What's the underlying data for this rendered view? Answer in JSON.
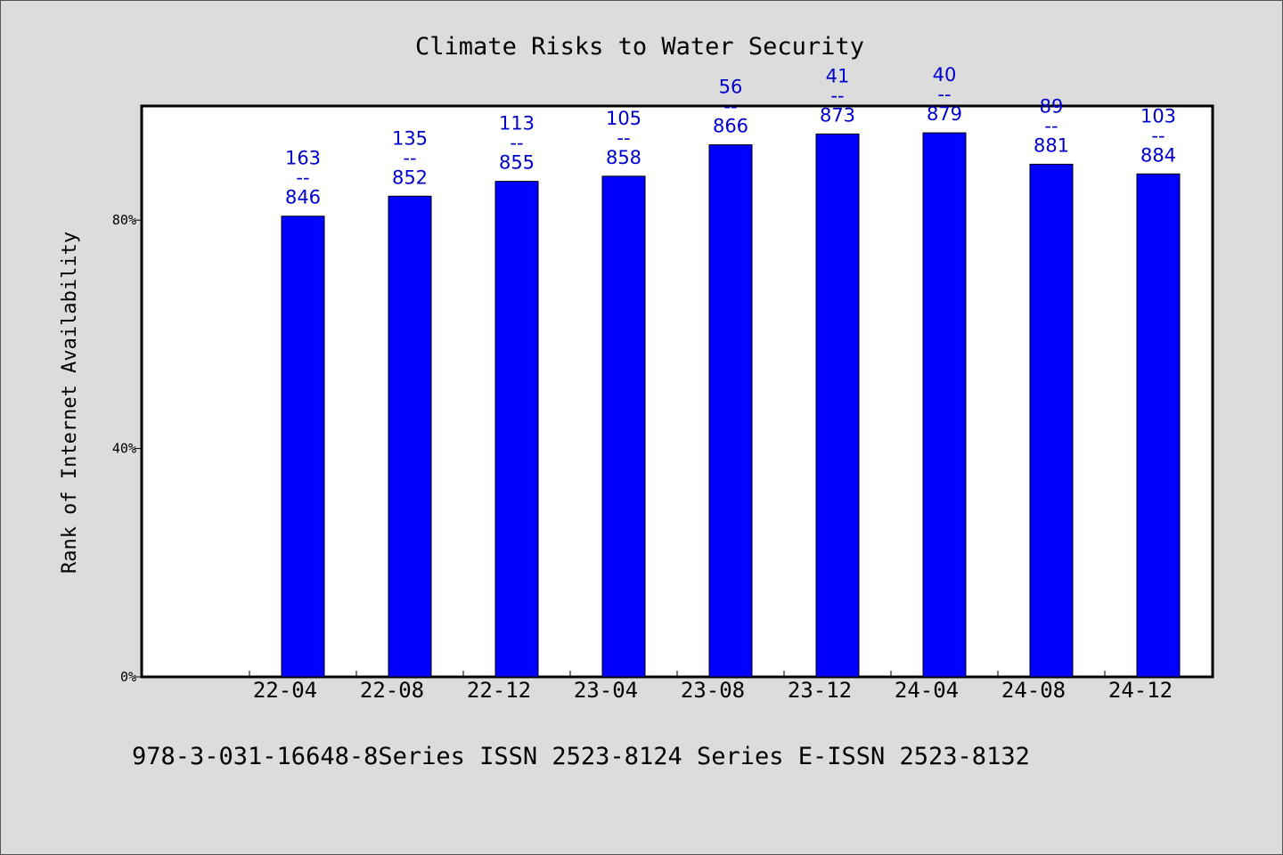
{
  "chart_data": {
    "type": "bar",
    "title": "Climate Risks to Water Security",
    "ylabel": "Rank of Internet Availability",
    "xlabel": "",
    "ylim": [
      0,
      100
    ],
    "yticks": [
      {
        "value": 0,
        "label": "0%"
      },
      {
        "value": 40,
        "label": "40%"
      },
      {
        "value": 80,
        "label": "80%"
      }
    ],
    "categories": [
      "22-04",
      "22-08",
      "22-12",
      "23-04",
      "23-08",
      "23-12",
      "24-04",
      "24-08",
      "24-12"
    ],
    "values": [
      80.7,
      84.2,
      86.8,
      87.7,
      93.2,
      95.1,
      95.3,
      89.8,
      88.1
    ],
    "bar_labels": [
      {
        "rank": "163",
        "sep": "--",
        "total": "846"
      },
      {
        "rank": "135",
        "sep": "--",
        "total": "852"
      },
      {
        "rank": "113",
        "sep": "--",
        "total": "855"
      },
      {
        "rank": "105",
        "sep": "--",
        "total": "858"
      },
      {
        "rank": "56",
        "sep": "--",
        "total": "866"
      },
      {
        "rank": "41",
        "sep": "--",
        "total": "873"
      },
      {
        "rank": "40",
        "sep": "--",
        "total": "879"
      },
      {
        "rank": "89",
        "sep": "--",
        "total": "881"
      },
      {
        "rank": "103",
        "sep": "--",
        "total": "884"
      }
    ],
    "grid": false,
    "bar_color": "#0000ff",
    "label_color": "#0000cc"
  },
  "footer": {
    "text": "978-3-031-16648-8Series ISSN 2523-8124 Series E-ISSN 2523-8132"
  }
}
